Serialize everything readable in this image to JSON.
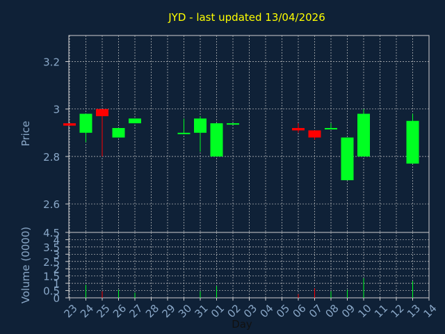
{
  "chart_data": [
    {
      "type": "candlestick",
      "title": "JYD - last updated 13/04/2026",
      "ylabel": "Price",
      "ylim": [
        2.48,
        3.31
      ],
      "yticks": [
        "3.2",
        "3",
        "2.8",
        "2.6"
      ],
      "ytick_values": [
        3.2,
        3.0,
        2.8,
        2.6
      ],
      "grid": true,
      "colors": {
        "background": "#0f2137",
        "up": "#00ff22",
        "down": "#ff0000",
        "title": "#ffff00",
        "text": "#8aa8c8",
        "grid": "#c8c8c8",
        "axis": "#d0d0d0"
      },
      "x": [
        "23",
        "24",
        "25",
        "26",
        "27",
        "28",
        "29",
        "30",
        "31",
        "01",
        "02",
        "03",
        "04",
        "05",
        "06",
        "07",
        "08",
        "09",
        "10",
        "11",
        "12",
        "13",
        "14"
      ],
      "candles": [
        {
          "x": "23",
          "open": 2.94,
          "close": 2.93,
          "high": 2.94,
          "low": 2.93
        },
        {
          "x": "24",
          "open": 2.9,
          "close": 2.98,
          "high": 2.98,
          "low": 2.86
        },
        {
          "x": "25",
          "open": 3.0,
          "close": 2.97,
          "high": 3.0,
          "low": 2.8
        },
        {
          "x": "26",
          "open": 2.88,
          "close": 2.92,
          "high": 2.92,
          "low": 2.88
        },
        {
          "x": "27",
          "open": 2.94,
          "close": 2.96,
          "high": 2.96,
          "low": 2.94
        },
        {
          "x": "30",
          "open": 2.9,
          "close": 2.9,
          "high": 2.96,
          "low": 2.9
        },
        {
          "x": "31",
          "open": 2.9,
          "close": 2.96,
          "high": 2.97,
          "low": 2.82
        },
        {
          "x": "01",
          "open": 2.8,
          "close": 2.94,
          "high": 2.94,
          "low": 2.8
        },
        {
          "x": "02",
          "open": 2.94,
          "close": 2.94,
          "high": 2.94,
          "low": 2.94
        },
        {
          "x": "06",
          "open": 2.92,
          "close": 2.91,
          "high": 2.94,
          "low": 2.9
        },
        {
          "x": "07",
          "open": 2.91,
          "close": 2.88,
          "high": 2.91,
          "low": 2.87
        },
        {
          "x": "08",
          "open": 2.92,
          "close": 2.92,
          "high": 2.94,
          "low": 2.92
        },
        {
          "x": "09",
          "open": 2.7,
          "close": 2.88,
          "high": 2.88,
          "low": 2.7
        },
        {
          "x": "10",
          "open": 2.8,
          "close": 2.98,
          "high": 3.0,
          "low": 2.8
        },
        {
          "x": "13",
          "open": 2.77,
          "close": 2.95,
          "high": 2.98,
          "low": 2.77
        }
      ]
    },
    {
      "type": "bar",
      "ylabel": "Volume (0000)",
      "xlabel": "Day",
      "ylim": [
        0,
        4.5
      ],
      "yticks": [
        "4.5",
        "4",
        "3.5",
        "3",
        "2.5",
        "2",
        "1.5",
        "1",
        "0.5",
        "0"
      ],
      "ytick_values": [
        4.5,
        4,
        3.5,
        3,
        2.5,
        2,
        1.5,
        1,
        0.5,
        0
      ],
      "categories": [
        "23",
        "24",
        "25",
        "26",
        "27",
        "28",
        "29",
        "30",
        "31",
        "01",
        "02",
        "03",
        "04",
        "05",
        "06",
        "07",
        "08",
        "09",
        "10",
        "11",
        "12",
        "13",
        "14"
      ],
      "bars": [
        {
          "x": "24",
          "value": 0.9,
          "dir": "up"
        },
        {
          "x": "25",
          "value": 0.45,
          "dir": "down"
        },
        {
          "x": "26",
          "value": 0.55,
          "dir": "up"
        },
        {
          "x": "27",
          "value": 0.35,
          "dir": "up"
        },
        {
          "x": "31",
          "value": 0.45,
          "dir": "up"
        },
        {
          "x": "01",
          "value": 0.8,
          "dir": "up"
        },
        {
          "x": "06",
          "value": 0.25,
          "dir": "down"
        },
        {
          "x": "07",
          "value": 0.65,
          "dir": "down"
        },
        {
          "x": "08",
          "value": 0.45,
          "dir": "up"
        },
        {
          "x": "09",
          "value": 0.55,
          "dir": "up"
        },
        {
          "x": "10",
          "value": 1.35,
          "dir": "up"
        },
        {
          "x": "13",
          "value": 1.15,
          "dir": "up"
        }
      ]
    }
  ]
}
